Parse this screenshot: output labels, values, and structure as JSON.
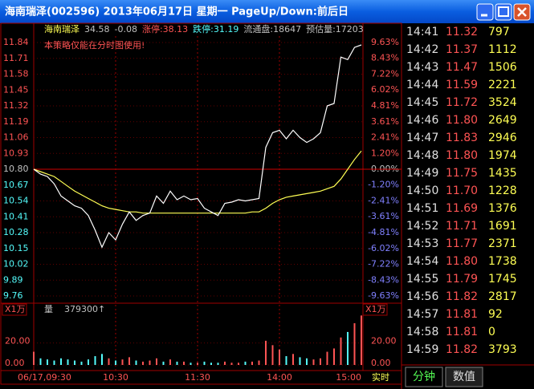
{
  "window": {
    "title": "海南瑞泽(002596) 2013年06月17日 星期一 PageUp/Down:前后日"
  },
  "header": [
    {
      "text": "海南瑞泽",
      "color": "#ffff54"
    },
    {
      "text": "34.58",
      "color": "#c0c0c0"
    },
    {
      "text": "-0.08",
      "color": "#c0c0c0"
    },
    {
      "text": "涨停:38.13",
      "color": "#ff5454"
    },
    {
      "text": "跌停:31.19",
      "color": "#54fcfc"
    },
    {
      "text": "流通盘:18647",
      "color": "#c0c0c0"
    },
    {
      "text": "预估量:17203",
      "color": "#c0c0c0"
    }
  ],
  "notice": "本策略仅能在分时图使用!",
  "chart_data": [
    {
      "type": "line",
      "x": [
        "09:30",
        "09:35",
        "09:40",
        "09:45",
        "09:50",
        "09:55",
        "10:00",
        "10:05",
        "10:10",
        "10:15",
        "10:20",
        "10:25",
        "10:30",
        "10:35",
        "10:40",
        "10:45",
        "10:50",
        "10:55",
        "11:00",
        "11:05",
        "11:10",
        "11:15",
        "11:20",
        "11:25",
        "11:30",
        "13:05",
        "13:10",
        "13:15",
        "13:20",
        "13:25",
        "13:30",
        "13:35",
        "13:40",
        "13:45",
        "13:50",
        "13:55",
        "14:00",
        "14:05",
        "14:10",
        "14:15",
        "14:20",
        "14:25",
        "14:30",
        "14:35",
        "14:40",
        "14:45",
        "14:50",
        "14:55",
        "15:00"
      ],
      "series": [
        {
          "color": "#ffffff",
          "values": [
            10.8,
            10.76,
            10.74,
            10.68,
            10.58,
            10.54,
            10.5,
            10.48,
            10.42,
            10.3,
            10.16,
            10.28,
            10.22,
            10.35,
            10.45,
            10.38,
            10.42,
            10.44,
            10.58,
            10.52,
            10.62,
            10.55,
            10.58,
            10.55,
            10.56,
            10.48,
            10.45,
            10.42,
            10.52,
            10.53,
            10.55,
            10.54,
            10.55,
            10.56,
            10.98,
            11.1,
            11.12,
            11.05,
            11.12,
            11.06,
            11.02,
            11.05,
            11.1,
            11.32,
            11.34,
            11.72,
            11.7,
            11.8,
            11.82
          ]
        },
        {
          "color": "#ffff54",
          "values": [
            10.8,
            10.78,
            10.76,
            10.74,
            10.7,
            10.66,
            10.62,
            10.59,
            10.56,
            10.53,
            10.5,
            10.48,
            10.47,
            10.46,
            10.45,
            10.45,
            10.44,
            10.44,
            10.44,
            10.44,
            10.44,
            10.44,
            10.44,
            10.44,
            10.44,
            10.44,
            10.44,
            10.44,
            10.44,
            10.44,
            10.44,
            10.44,
            10.45,
            10.45,
            10.48,
            10.52,
            10.55,
            10.57,
            10.58,
            10.59,
            10.6,
            10.61,
            10.62,
            10.64,
            10.66,
            10.72,
            10.8,
            10.88,
            10.95
          ]
        }
      ],
      "ylim": [
        9.76,
        11.84
      ],
      "yticks": [
        11.84,
        11.71,
        11.58,
        11.45,
        11.32,
        11.19,
        11.06,
        10.93,
        {
          "value": 10.8,
          "label": "10.80"
        },
        10.67,
        10.54,
        10.41,
        10.28,
        10.15,
        10.02,
        9.89,
        9.76
      ],
      "y2lim": [
        -9.63,
        9.63
      ],
      "y2ticks": [
        {
          "value": 9.63,
          "label": "9.63%"
        },
        {
          "value": 8.43,
          "label": "8.43%"
        },
        {
          "value": 7.22,
          "label": "7.22%"
        },
        {
          "value": 6.02,
          "label": "6.02%"
        },
        {
          "value": 4.81,
          "label": "4.81%"
        },
        {
          "value": 3.61,
          "label": "3.61%"
        },
        {
          "value": 2.41,
          "label": "2.41%"
        },
        {
          "value": 1.2,
          "label": "1.20%"
        },
        {
          "value": 0,
          "label": "0.00%"
        },
        {
          "value": -1.2,
          "label": "-1.20%"
        },
        {
          "value": -2.41,
          "label": "-2.41%"
        },
        {
          "value": -3.61,
          "label": "-3.61%"
        },
        {
          "value": -4.81,
          "label": "-4.81%"
        },
        {
          "value": -6.02,
          "label": "-6.02%"
        },
        {
          "value": -7.22,
          "label": "-7.22%"
        },
        {
          "value": -8.43,
          "label": "-8.43%"
        },
        {
          "value": -9.63,
          "label": "-9.63%"
        }
      ],
      "base_line": 10.8,
      "up_color": "#ff5454",
      "down_color": "#54fcfc",
      "xticks": [
        {
          "value": "09:30",
          "label": "06/17,09:30"
        },
        "10:30",
        "11:30",
        "14:00",
        "15:00"
      ]
    },
    {
      "type": "bar",
      "label": "量",
      "value_label": "379300↑",
      "unit": "X1万",
      "values": [
        12,
        6,
        5,
        4,
        6,
        5,
        4,
        3,
        5,
        8,
        10,
        6,
        4,
        5,
        7,
        4,
        3,
        4,
        6,
        3,
        5,
        3,
        3,
        2,
        2,
        3,
        2,
        2,
        3,
        2,
        2,
        3,
        3,
        4,
        22,
        18,
        14,
        8,
        10,
        7,
        6,
        5,
        6,
        12,
        15,
        25,
        30,
        38,
        45
      ],
      "ylim": [
        0,
        46
      ],
      "yticks": [
        {
          "value": 0,
          "label": "0.00"
        },
        {
          "value": 20,
          "label": "20.00"
        }
      ],
      "up_color": "#ff5454",
      "down_color": "#54fcfc"
    }
  ],
  "realtime": "实时",
  "trades": {
    "rows": [
      [
        "14:41",
        "11.32",
        "797"
      ],
      [
        "14:42",
        "11.37",
        "1112"
      ],
      [
        "14:43",
        "11.47",
        "1506"
      ],
      [
        "14:44",
        "11.59",
        "2221"
      ],
      [
        "14:45",
        "11.72",
        "3524"
      ],
      [
        "14:46",
        "11.80",
        "2649"
      ],
      [
        "14:47",
        "11.83",
        "2946"
      ],
      [
        "14:48",
        "11.80",
        "1974"
      ],
      [
        "14:49",
        "11.75",
        "1435"
      ],
      [
        "14:50",
        "11.70",
        "1228"
      ],
      [
        "14:51",
        "11.69",
        "1376"
      ],
      [
        "14:52",
        "11.71",
        "1691"
      ],
      [
        "14:53",
        "11.77",
        "2371"
      ],
      [
        "14:54",
        "11.80",
        "1738"
      ],
      [
        "14:55",
        "11.79",
        "1745"
      ],
      [
        "14:56",
        "11.82",
        "2817"
      ],
      [
        "14:57",
        "11.81",
        "92"
      ],
      [
        "14:58",
        "11.81",
        "0"
      ],
      [
        "14:59",
        "11.82",
        "3793"
      ]
    ],
    "tabs": [
      "分钟",
      "数值"
    ]
  }
}
